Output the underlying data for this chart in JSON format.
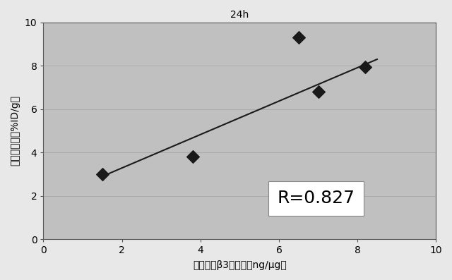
{
  "title": "24h",
  "xlabel": "腫瘍塊中β3発現量（ng/μg）",
  "ylabel": "腫瘍集積量（%ID/g）",
  "x_data": [
    1.5,
    3.8,
    6.5,
    7.0,
    8.2
  ],
  "y_data": [
    3.0,
    3.8,
    9.3,
    6.8,
    7.95
  ],
  "xlim": [
    0,
    10
  ],
  "ylim": [
    0,
    10
  ],
  "xticks": [
    0,
    2,
    4,
    6,
    8,
    10
  ],
  "yticks": [
    0,
    2,
    4,
    6,
    8,
    10
  ],
  "line_x": [
    1.5,
    8.5
  ],
  "line_y": [
    2.9,
    8.3
  ],
  "r_text": "R=0.827",
  "marker_color": "#1a1a1a",
  "line_color": "#1a1a1a",
  "plot_bg_color": "#c0c0c0",
  "fig_bg_color": "#e8e8e8",
  "title_fontsize": 12,
  "label_fontsize": 10,
  "tick_fontsize": 10,
  "annotation_fontsize": 18,
  "marker_size": 9,
  "grid_color": "#aaaaaa"
}
